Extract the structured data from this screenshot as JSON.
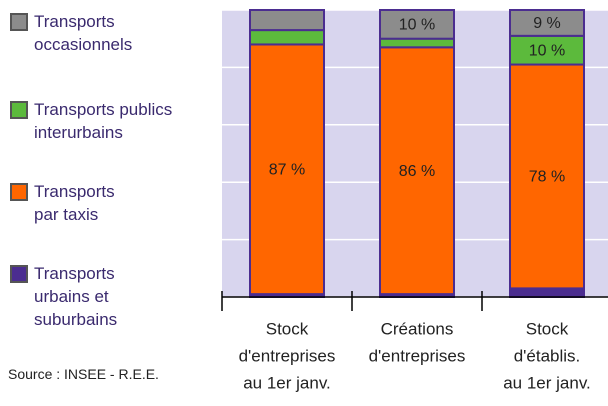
{
  "chart_data": {
    "type": "stacked_bar",
    "categories": [
      [
        "Stock",
        "d'entreprises",
        "au 1er janv."
      ],
      [
        "Créations",
        "d'entreprises"
      ],
      [
        "Stock",
        "d'établis.",
        "au 1er janv."
      ]
    ],
    "series": [
      {
        "name": "Transports\nurbains et\nsuburbains",
        "color": "#4b2d90",
        "values": [
          1,
          1,
          3
        ],
        "value_labels": [
          null,
          null,
          null
        ]
      },
      {
        "name": "Transports\npar taxis",
        "color": "#ff6600",
        "values": [
          87,
          86,
          78
        ],
        "value_labels": [
          "87 %",
          "86 %",
          "78 %"
        ]
      },
      {
        "name": "Transports publics\ninterurbains",
        "color": "#5cba3c",
        "values": [
          5,
          3,
          10
        ],
        "value_labels": [
          null,
          null,
          "10 %"
        ]
      },
      {
        "name": "Transports\noccasionnels",
        "color": "#8c8c8c",
        "values": [
          7,
          10,
          9
        ],
        "value_labels": [
          null,
          "10 %",
          "9 %"
        ]
      }
    ],
    "ylim": [
      0,
      100
    ],
    "yticks": [
      0,
      20,
      40,
      60,
      80,
      100
    ],
    "grid": true,
    "source": "Source : INSEE - R.E.E."
  }
}
